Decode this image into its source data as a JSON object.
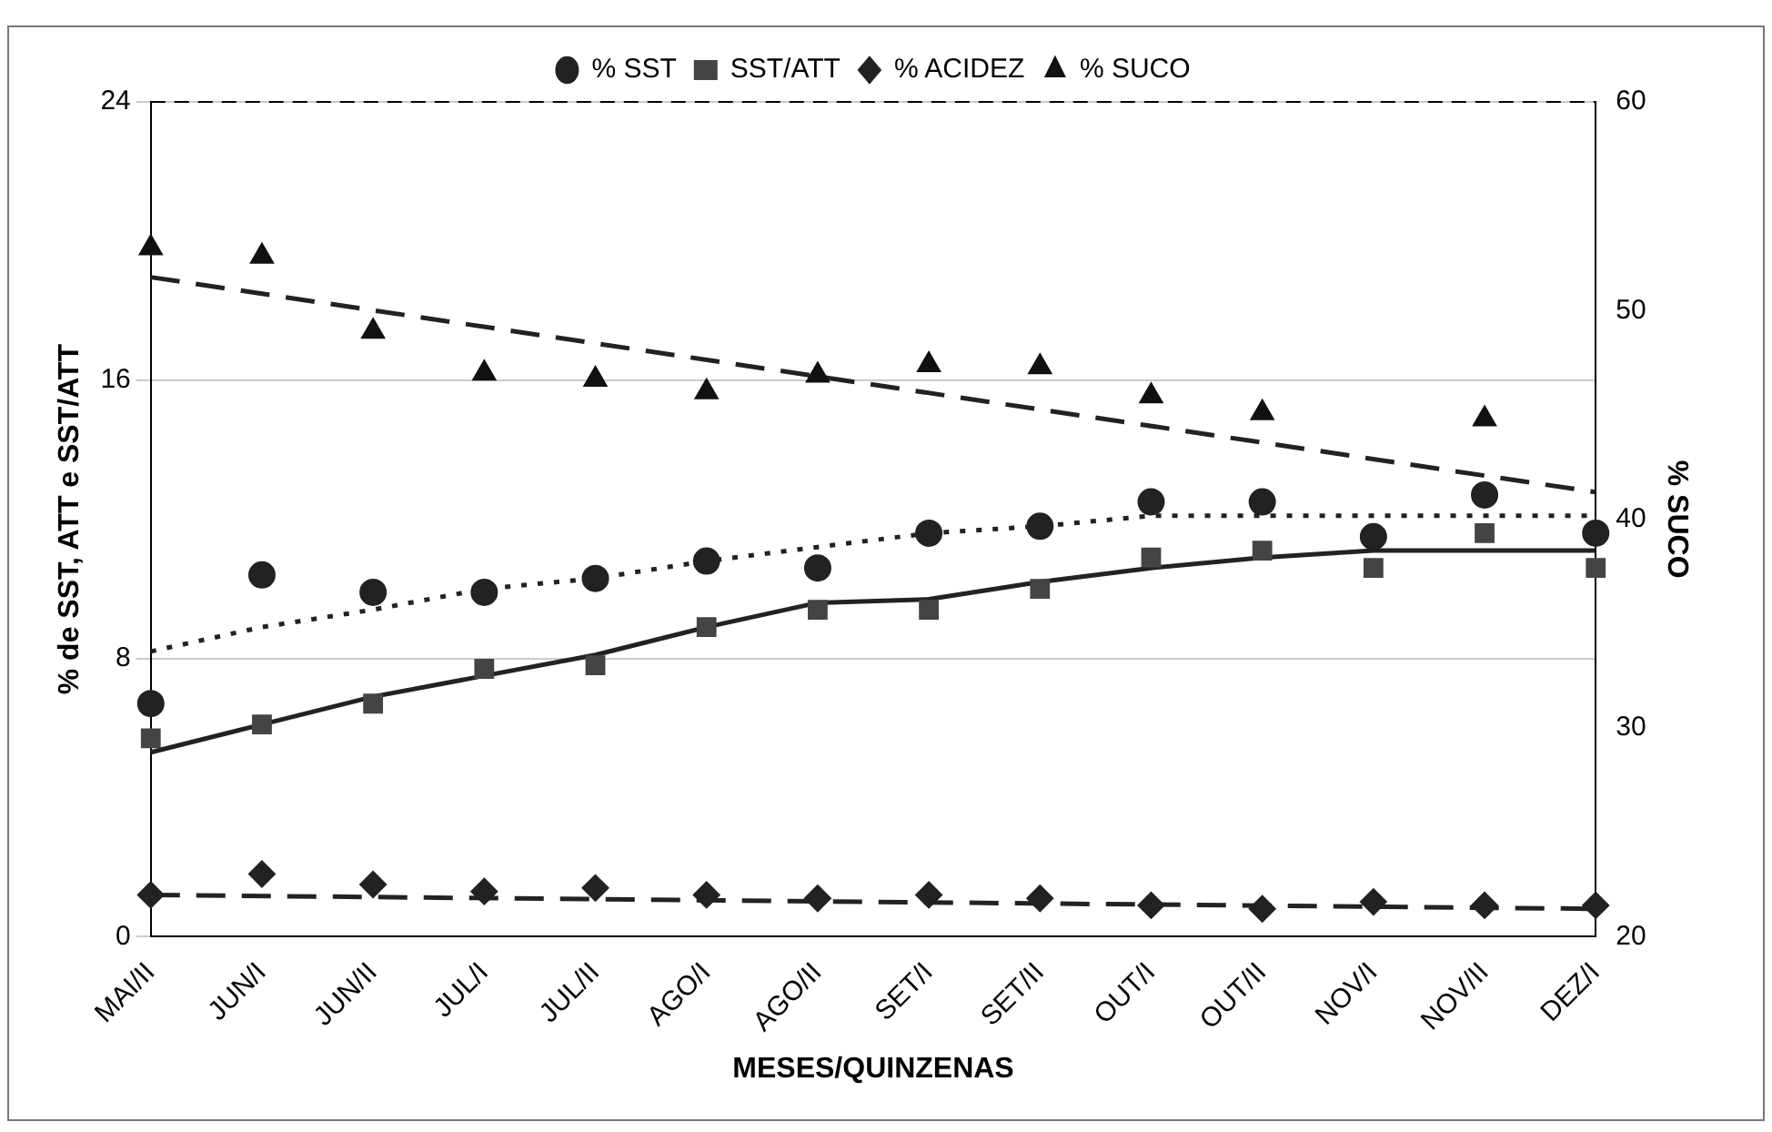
{
  "chart_data": {
    "type": "line",
    "xlabel": "MESES/QUINZENAS",
    "ylabel": "% de SST, ATT e SST/ATT",
    "y2label": "% SUCO",
    "categories": [
      "MAI/II",
      "JUN/I",
      "JUN/II",
      "JUL/I",
      "JUL/II",
      "AGO/I",
      "AGO/II",
      "SET/I",
      "SET/II",
      "OUT/I",
      "OUT/II",
      "NOV/I",
      "NOV/II",
      "DEZ/I"
    ],
    "series": [
      {
        "name": "% SST",
        "type": "scatter",
        "marker": "circle",
        "color": "#222222",
        "values": [
          6.7,
          10.4,
          9.9,
          9.9,
          10.3,
          10.8,
          10.6,
          11.6,
          11.8,
          12.5,
          12.5,
          11.5,
          12.7,
          11.6
        ]
      },
      {
        "name": "SST/ATT",
        "type": "scatter",
        "marker": "square",
        "color": "#444444",
        "values": [
          5.7,
          6.1,
          6.7,
          7.7,
          7.8,
          8.9,
          9.4,
          9.4,
          10.0,
          10.9,
          11.1,
          10.6,
          11.6,
          10.6
        ]
      },
      {
        "name": "% ACIDEZ",
        "type": "scatter",
        "marker": "diamond",
        "color": "#222222",
        "values": [
          1.2,
          1.8,
          1.5,
          1.3,
          1.4,
          1.2,
          1.1,
          1.2,
          1.1,
          0.9,
          0.8,
          1.0,
          0.9,
          0.9
        ]
      },
      {
        "name": "% SUCO",
        "type": "scatter",
        "marker": "triangle",
        "color": "#111111",
        "axis": "y2",
        "values": [
          53.0,
          52.6,
          49.0,
          47.0,
          46.7,
          46.1,
          46.9,
          47.4,
          47.3,
          45.9,
          45.1,
          null,
          44.8,
          null
        ]
      },
      {
        "type": "line",
        "marker": "none",
        "line_style": "dotted",
        "color": "#222222",
        "values": [
          8.2,
          8.9,
          9.4,
          10.0,
          10.3,
          10.8,
          11.2,
          11.6,
          11.8,
          12.1,
          12.1,
          12.1,
          12.1,
          12.1
        ]
      },
      {
        "type": "line",
        "marker": "none",
        "line_style": "solid",
        "color": "#222222",
        "values": [
          5.3,
          6.1,
          6.9,
          7.5,
          8.1,
          8.9,
          9.6,
          9.7,
          10.2,
          10.6,
          10.9,
          11.1,
          11.1,
          11.1
        ]
      },
      {
        "type": "line",
        "marker": "none",
        "line_style": "dashed",
        "color": "#222222",
        "x": [
          "MAI/II",
          "DEZ/I"
        ],
        "values": [
          1.2,
          0.8
        ]
      },
      {
        "type": "line",
        "marker": "none",
        "line_style": "dashed",
        "color": "#222222",
        "axis": "y2",
        "x": [
          "MAI/II",
          "DEZ/I"
        ],
        "values": [
          51.6,
          41.3
        ]
      }
    ],
    "ylim": [
      0,
      24
    ],
    "yticks": [
      0,
      8,
      16,
      24
    ],
    "y2lim": [
      20,
      60
    ],
    "y2ticks": [
      20,
      30,
      40,
      50,
      60
    ],
    "grid": "y",
    "legend": "top"
  }
}
